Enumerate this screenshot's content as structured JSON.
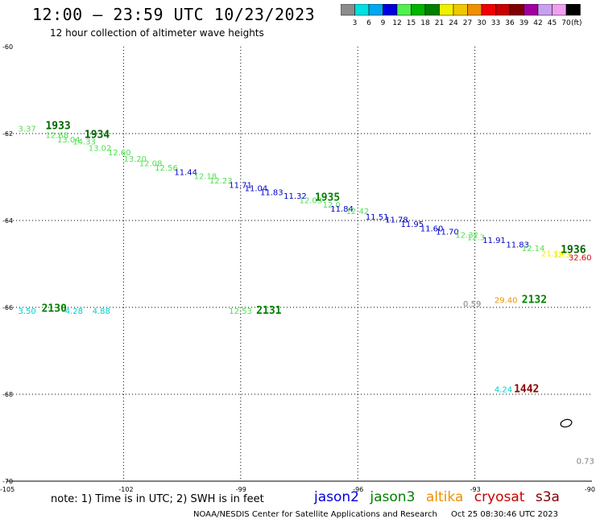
{
  "header": {
    "title": "12:00 – 23:59 UTC 10/23/2023",
    "subtitle": "12 hour collection of altimeter wave heights"
  },
  "colorbar": {
    "unit": "(ft)",
    "levels": [
      "3",
      "6",
      "9",
      "12",
      "15",
      "18",
      "21",
      "24",
      "27",
      "30",
      "33",
      "36",
      "39",
      "42",
      "45",
      "70"
    ],
    "colors": [
      "#8c8c8c",
      "#00e0e0",
      "#00a8f0",
      "#0000dc",
      "#50f050",
      "#00b400",
      "#008000",
      "#f0f000",
      "#f0c800",
      "#f09000",
      "#f00000",
      "#c80000",
      "#800000",
      "#a000a0",
      "#c8a0f0",
      "#f0a0f0",
      "#000000"
    ]
  },
  "map": {
    "lon_range": [
      -105,
      -90
    ],
    "lat_range": [
      -70,
      -60
    ],
    "lon_ticks": [
      "-105",
      "-102",
      "-99",
      "-96",
      "-93",
      "-90"
    ],
    "lat_ticks": [
      "-60",
      "-62",
      "-64",
      "-66",
      "-68",
      "-70"
    ],
    "grid": "dotted",
    "time_labels": [
      {
        "text": "1933",
        "lon": -104.0,
        "lat": -61.9,
        "color": "#006400"
      },
      {
        "text": "1934",
        "lon": -103.0,
        "lat": -62.1,
        "color": "#006400"
      },
      {
        "text": "1935",
        "lon": -97.1,
        "lat": -63.55,
        "color": "#008000"
      },
      {
        "text": "1936",
        "lon": -90.8,
        "lat": -64.75,
        "color": "#006400"
      },
      {
        "text": "2130",
        "lon": -104.1,
        "lat": -66.1,
        "color": "#008000"
      },
      {
        "text": "2131",
        "lon": -98.6,
        "lat": -66.15,
        "color": "#008000"
      },
      {
        "text": "2132",
        "lon": -91.8,
        "lat": -65.9,
        "color": "#008000"
      },
      {
        "text": "1442",
        "lon": -92.0,
        "lat": -67.95,
        "color": "#8b0000"
      }
    ],
    "swh_labels": [
      {
        "text": "3.37",
        "lon": -104.7,
        "lat": -61.95,
        "color": "#50e050"
      },
      {
        "text": "12.68",
        "lon": -104.0,
        "lat": -62.1,
        "color": "#50e050"
      },
      {
        "text": "13.04",
        "lon": -103.7,
        "lat": -62.2,
        "color": "#50e050"
      },
      {
        "text": "14.33",
        "lon": -103.3,
        "lat": -62.25,
        "color": "#50e050"
      },
      {
        "text": "13.02",
        "lon": -102.9,
        "lat": -62.4,
        "color": "#50e050"
      },
      {
        "text": "12.60",
        "lon": -102.4,
        "lat": -62.5,
        "color": "#50e050"
      },
      {
        "text": "13.20",
        "lon": -102.0,
        "lat": -62.65,
        "color": "#50e050"
      },
      {
        "text": "12.08",
        "lon": -101.6,
        "lat": -62.75,
        "color": "#50e050"
      },
      {
        "text": "12.56",
        "lon": -101.2,
        "lat": -62.85,
        "color": "#50e050"
      },
      {
        "text": "11.44",
        "lon": -100.7,
        "lat": -62.95,
        "color": "#0000c8"
      },
      {
        "text": "12.18",
        "lon": -100.2,
        "lat": -63.05,
        "color": "#50e050"
      },
      {
        "text": "12.23",
        "lon": -99.8,
        "lat": -63.15,
        "color": "#50e050"
      },
      {
        "text": "11.71",
        "lon": -99.3,
        "lat": -63.25,
        "color": "#0000c8"
      },
      {
        "text": "11.04",
        "lon": -98.9,
        "lat": -63.32,
        "color": "#0000c8"
      },
      {
        "text": "11.83",
        "lon": -98.5,
        "lat": -63.42,
        "color": "#0000c8"
      },
      {
        "text": "11.32",
        "lon": -97.9,
        "lat": -63.5,
        "color": "#0000c8"
      },
      {
        "text": "12.03",
        "lon": -97.5,
        "lat": -63.6,
        "color": "#50e050"
      },
      {
        "text": "12.0",
        "lon": -96.9,
        "lat": -63.7,
        "color": "#50e050"
      },
      {
        "text": "11.84",
        "lon": -96.7,
        "lat": -63.8,
        "color": "#0000c8"
      },
      {
        "text": "12.42",
        "lon": -96.3,
        "lat": -63.85,
        "color": "#50e050"
      },
      {
        "text": "11.51",
        "lon": -95.8,
        "lat": -63.98,
        "color": "#0000c8"
      },
      {
        "text": "11.78",
        "lon": -95.3,
        "lat": -64.05,
        "color": "#0000c8"
      },
      {
        "text": "11.95",
        "lon": -94.9,
        "lat": -64.15,
        "color": "#0000c8"
      },
      {
        "text": "11.60",
        "lon": -94.4,
        "lat": -64.25,
        "color": "#0000c8"
      },
      {
        "text": "11.70",
        "lon": -94.0,
        "lat": -64.32,
        "color": "#0000c8"
      },
      {
        "text": "12.32",
        "lon": -93.5,
        "lat": -64.4,
        "color": "#50e050"
      },
      {
        "text": "12.3",
        "lon": -93.2,
        "lat": -64.45,
        "color": "#50e050"
      },
      {
        "text": "11.91",
        "lon": -92.8,
        "lat": -64.52,
        "color": "#0000c8"
      },
      {
        "text": "11.83",
        "lon": -92.2,
        "lat": -64.62,
        "color": "#0000c8"
      },
      {
        "text": "12.14",
        "lon": -91.8,
        "lat": -64.7,
        "color": "#50e050"
      },
      {
        "text": "21.14",
        "lon": -91.3,
        "lat": -64.82,
        "color": "#f0f000"
      },
      {
        "text": "12.3",
        "lon": -91.0,
        "lat": -64.85,
        "color": "#f0f000"
      },
      {
        "text": "32.60",
        "lon": -90.6,
        "lat": -64.92,
        "color": "#e00000"
      },
      {
        "text": "3.50",
        "lon": -104.7,
        "lat": -66.15,
        "color": "#00d0d0"
      },
      {
        "text": "4.28",
        "lon": -103.5,
        "lat": -66.15,
        "color": "#00d0d0"
      },
      {
        "text": "4.88",
        "lon": -102.8,
        "lat": -66.15,
        "color": "#00d0d0"
      },
      {
        "text": "12.53",
        "lon": -99.3,
        "lat": -66.15,
        "color": "#50e050"
      },
      {
        "text": "0.59",
        "lon": -93.3,
        "lat": -65.98,
        "color": "#808080"
      },
      {
        "text": "29.40",
        "lon": -92.5,
        "lat": -65.9,
        "color": "#f09000"
      },
      {
        "text": "4.24",
        "lon": -92.5,
        "lat": -67.95,
        "color": "#00d0d0"
      },
      {
        "text": "0.73",
        "lon": -90.4,
        "lat": -69.6,
        "color": "#808080"
      }
    ]
  },
  "note": "note:  1) Time is in UTC; 2) SWH is in feet",
  "satellites": [
    {
      "name": "jason2",
      "color": "#0000dc"
    },
    {
      "name": "jason3",
      "color": "#008000"
    },
    {
      "name": "altika",
      "color": "#f09000"
    },
    {
      "name": "cryosat",
      "color": "#c80000"
    },
    {
      "name": "s3a",
      "color": "#800000"
    }
  ],
  "footer": {
    "credit": "NOAA/NESDIS Center for Satellite Applications and Research",
    "timestamp": "Oct 25 08:30:46 UTC 2023"
  }
}
